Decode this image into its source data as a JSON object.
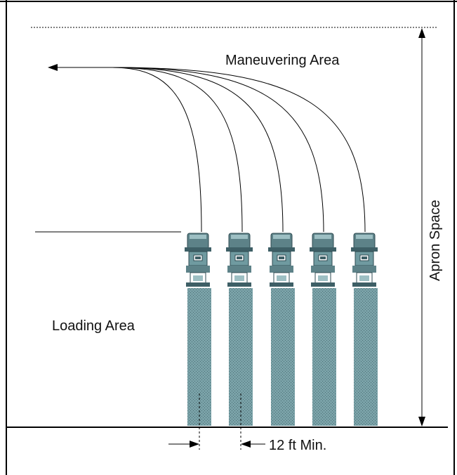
{
  "diagram": {
    "labels": {
      "maneuvering_area": "Maneuvering Area",
      "loading_area": "Loading Area",
      "apron_space": "Apron Space",
      "spacing_min": "12 ft Min."
    },
    "truck_count": 5,
    "colors": {
      "truck_body": "#6f9aa0",
      "truck_dark": "#3e5f66",
      "line": "#000000",
      "border": "#000000"
    }
  }
}
